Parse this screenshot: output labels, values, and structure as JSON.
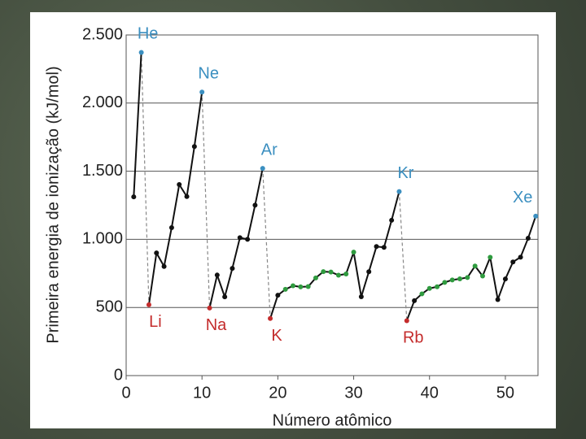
{
  "chart_data": {
    "type": "line",
    "x_label": "Número atômico",
    "y_label": "Primeira energia de ionização (kJ/mol)",
    "x": [
      1,
      2,
      3,
      4,
      5,
      6,
      7,
      8,
      9,
      10,
      11,
      12,
      13,
      14,
      15,
      16,
      17,
      18,
      19,
      20,
      21,
      22,
      23,
      24,
      25,
      26,
      27,
      28,
      29,
      30,
      31,
      32,
      33,
      34,
      35,
      36,
      37,
      38,
      39,
      40,
      41,
      42,
      43,
      44,
      45,
      46,
      47,
      48,
      49,
      50,
      51,
      52,
      53,
      54
    ],
    "values": [
      1312,
      2372,
      520,
      900,
      801,
      1086,
      1402,
      1314,
      1681,
      2081,
      496,
      738,
      578,
      787,
      1012,
      1000,
      1251,
      1521,
      419,
      590,
      633,
      659,
      651,
      653,
      717,
      763,
      760,
      737,
      746,
      906,
      579,
      762,
      947,
      941,
      1140,
      1351,
      403,
      550,
      600,
      640,
      652,
      684,
      702,
      710,
      720,
      804,
      731,
      868,
      558,
      709,
      834,
      869,
      1008,
      1170
    ],
    "point_colors": [
      "#111111",
      "#3b8fc0",
      "#c42c2c",
      "#111111",
      "#111111",
      "#111111",
      "#111111",
      "#111111",
      "#111111",
      "#3b8fc0",
      "#c42c2c",
      "#111111",
      "#111111",
      "#111111",
      "#111111",
      "#111111",
      "#111111",
      "#3b8fc0",
      "#c42c2c",
      "#111111",
      "#2f9b3f",
      "#2f9b3f",
      "#2f9b3f",
      "#2f9b3f",
      "#2f9b3f",
      "#2f9b3f",
      "#2f9b3f",
      "#2f9b3f",
      "#2f9b3f",
      "#2f9b3f",
      "#111111",
      "#111111",
      "#111111",
      "#111111",
      "#111111",
      "#3b8fc0",
      "#c42c2c",
      "#111111",
      "#2f9b3f",
      "#2f9b3f",
      "#2f9b3f",
      "#2f9b3f",
      "#2f9b3f",
      "#2f9b3f",
      "#2f9b3f",
      "#2f9b3f",
      "#2f9b3f",
      "#2f9b3f",
      "#111111",
      "#111111",
      "#111111",
      "#111111",
      "#111111",
      "#3b8fc0"
    ],
    "point_labels": [
      null,
      "He",
      "Li",
      null,
      null,
      null,
      null,
      null,
      null,
      "Ne",
      "Na",
      null,
      null,
      null,
      null,
      null,
      null,
      "Ar",
      "K",
      null,
      null,
      null,
      null,
      null,
      null,
      null,
      null,
      null,
      null,
      null,
      null,
      null,
      null,
      null,
      null,
      "Kr",
      "Rb",
      null,
      null,
      null,
      null,
      null,
      null,
      null,
      null,
      null,
      null,
      null,
      null,
      null,
      null,
      null,
      null,
      "Xe"
    ],
    "dashed_segments": [
      [
        2,
        3
      ],
      [
        10,
        11
      ],
      [
        18,
        19
      ],
      [
        36,
        37
      ]
    ],
    "line_color": "#111111",
    "dash_color": "#888888",
    "xlim": [
      0,
      54.3
    ],
    "ylim": [
      0,
      2500
    ],
    "xticks": [
      0,
      10,
      20,
      30,
      40,
      50
    ],
    "yticks": [
      0,
      500,
      {
        "value": 1000,
        "label": "1.000"
      },
      {
        "value": 1500,
        "label": "1.500"
      },
      {
        "value": 2000,
        "label": "2.000"
      },
      {
        "value": 2500,
        "label": "2.500"
      }
    ],
    "grid": true
  }
}
